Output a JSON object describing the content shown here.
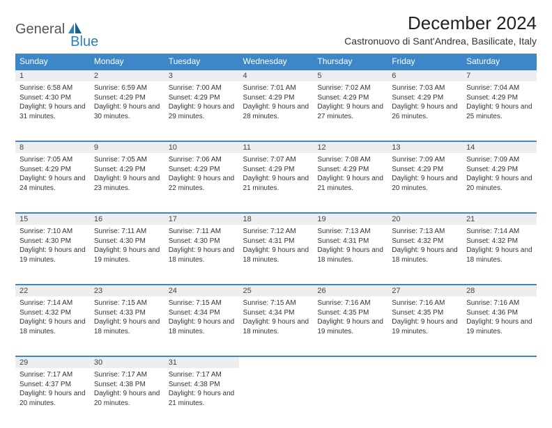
{
  "logo": {
    "general": "General",
    "blue": "Blue"
  },
  "title": "December 2024",
  "location": "Castronuovo di Sant'Andrea, Basilicate, Italy",
  "colors": {
    "header_bg": "#3d87c9",
    "header_fg": "#ffffff",
    "daynum_bg": "#eceeef",
    "row_border": "#3d87c9",
    "text": "#333333",
    "logo_gray": "#555555",
    "logo_blue": "#2c7fb8"
  },
  "weekdays": [
    "Sunday",
    "Monday",
    "Tuesday",
    "Wednesday",
    "Thursday",
    "Friday",
    "Saturday"
  ],
  "weeks": [
    [
      {
        "n": "1",
        "sr": "6:58 AM",
        "ss": "4:30 PM",
        "dl": "9 hours and 31 minutes."
      },
      {
        "n": "2",
        "sr": "6:59 AM",
        "ss": "4:29 PM",
        "dl": "9 hours and 30 minutes."
      },
      {
        "n": "3",
        "sr": "7:00 AM",
        "ss": "4:29 PM",
        "dl": "9 hours and 29 minutes."
      },
      {
        "n": "4",
        "sr": "7:01 AM",
        "ss": "4:29 PM",
        "dl": "9 hours and 28 minutes."
      },
      {
        "n": "5",
        "sr": "7:02 AM",
        "ss": "4:29 PM",
        "dl": "9 hours and 27 minutes."
      },
      {
        "n": "6",
        "sr": "7:03 AM",
        "ss": "4:29 PM",
        "dl": "9 hours and 26 minutes."
      },
      {
        "n": "7",
        "sr": "7:04 AM",
        "ss": "4:29 PM",
        "dl": "9 hours and 25 minutes."
      }
    ],
    [
      {
        "n": "8",
        "sr": "7:05 AM",
        "ss": "4:29 PM",
        "dl": "9 hours and 24 minutes."
      },
      {
        "n": "9",
        "sr": "7:05 AM",
        "ss": "4:29 PM",
        "dl": "9 hours and 23 minutes."
      },
      {
        "n": "10",
        "sr": "7:06 AM",
        "ss": "4:29 PM",
        "dl": "9 hours and 22 minutes."
      },
      {
        "n": "11",
        "sr": "7:07 AM",
        "ss": "4:29 PM",
        "dl": "9 hours and 21 minutes."
      },
      {
        "n": "12",
        "sr": "7:08 AM",
        "ss": "4:29 PM",
        "dl": "9 hours and 21 minutes."
      },
      {
        "n": "13",
        "sr": "7:09 AM",
        "ss": "4:29 PM",
        "dl": "9 hours and 20 minutes."
      },
      {
        "n": "14",
        "sr": "7:09 AM",
        "ss": "4:29 PM",
        "dl": "9 hours and 20 minutes."
      }
    ],
    [
      {
        "n": "15",
        "sr": "7:10 AM",
        "ss": "4:30 PM",
        "dl": "9 hours and 19 minutes."
      },
      {
        "n": "16",
        "sr": "7:11 AM",
        "ss": "4:30 PM",
        "dl": "9 hours and 19 minutes."
      },
      {
        "n": "17",
        "sr": "7:11 AM",
        "ss": "4:30 PM",
        "dl": "9 hours and 18 minutes."
      },
      {
        "n": "18",
        "sr": "7:12 AM",
        "ss": "4:31 PM",
        "dl": "9 hours and 18 minutes."
      },
      {
        "n": "19",
        "sr": "7:13 AM",
        "ss": "4:31 PM",
        "dl": "9 hours and 18 minutes."
      },
      {
        "n": "20",
        "sr": "7:13 AM",
        "ss": "4:32 PM",
        "dl": "9 hours and 18 minutes."
      },
      {
        "n": "21",
        "sr": "7:14 AM",
        "ss": "4:32 PM",
        "dl": "9 hours and 18 minutes."
      }
    ],
    [
      {
        "n": "22",
        "sr": "7:14 AM",
        "ss": "4:32 PM",
        "dl": "9 hours and 18 minutes."
      },
      {
        "n": "23",
        "sr": "7:15 AM",
        "ss": "4:33 PM",
        "dl": "9 hours and 18 minutes."
      },
      {
        "n": "24",
        "sr": "7:15 AM",
        "ss": "4:34 PM",
        "dl": "9 hours and 18 minutes."
      },
      {
        "n": "25",
        "sr": "7:15 AM",
        "ss": "4:34 PM",
        "dl": "9 hours and 18 minutes."
      },
      {
        "n": "26",
        "sr": "7:16 AM",
        "ss": "4:35 PM",
        "dl": "9 hours and 19 minutes."
      },
      {
        "n": "27",
        "sr": "7:16 AM",
        "ss": "4:35 PM",
        "dl": "9 hours and 19 minutes."
      },
      {
        "n": "28",
        "sr": "7:16 AM",
        "ss": "4:36 PM",
        "dl": "9 hours and 19 minutes."
      }
    ],
    [
      {
        "n": "29",
        "sr": "7:17 AM",
        "ss": "4:37 PM",
        "dl": "9 hours and 20 minutes."
      },
      {
        "n": "30",
        "sr": "7:17 AM",
        "ss": "4:38 PM",
        "dl": "9 hours and 20 minutes."
      },
      {
        "n": "31",
        "sr": "7:17 AM",
        "ss": "4:38 PM",
        "dl": "9 hours and 21 minutes."
      },
      null,
      null,
      null,
      null
    ]
  ],
  "labels": {
    "sunrise": "Sunrise: ",
    "sunset": "Sunset: ",
    "daylight": "Daylight: "
  }
}
